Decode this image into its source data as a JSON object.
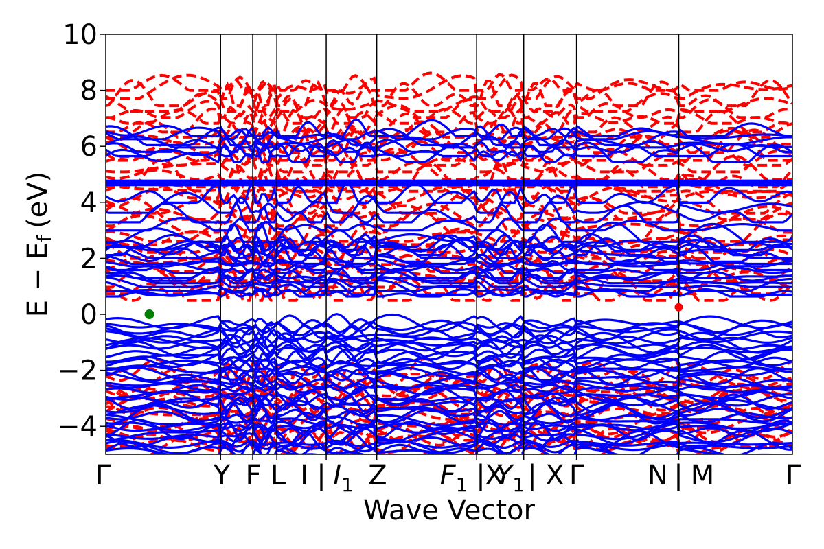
{
  "chart_data": {
    "type": "line",
    "title": "",
    "xlabel": "Wave Vector",
    "ylabel": "E − E",
    "ylabel_subscript": "f",
    "ylabel_unit": "(eV)",
    "ylim": [
      -5,
      10
    ],
    "grid": false,
    "y_ticks": [
      {
        "value": -4,
        "label": "−4"
      },
      {
        "value": -2,
        "label": "−2"
      },
      {
        "value": 0,
        "label": "0"
      },
      {
        "value": 2,
        "label": "2"
      },
      {
        "value": 4,
        "label": "4"
      },
      {
        "value": 6,
        "label": "6"
      },
      {
        "value": 8,
        "label": "8"
      },
      {
        "value": 10,
        "label": "10"
      }
    ],
    "kpath_segments": [
      1.0,
      0.28,
      0.21,
      0.43,
      0.44,
      0.87,
      0.41,
      0.46,
      0.89,
      0.99
    ],
    "high_symmetry_labels": [
      {
        "label": "Γ"
      },
      {
        "label": "Y"
      },
      {
        "label": "F"
      },
      {
        "label": "L"
      },
      {
        "label": "I"
      },
      {
        "label": "|"
      },
      {
        "label": "I",
        "sub": "1"
      },
      {
        "label": "Z"
      },
      {
        "label": "F",
        "sub": "1"
      },
      {
        "label": "|"
      },
      {
        "label": "X"
      },
      {
        "label": "Y",
        "sub": "1"
      },
      {
        "label": "|"
      },
      {
        "label": "X"
      },
      {
        "label": "Γ"
      },
      {
        "label": "N"
      },
      {
        "label": "|"
      },
      {
        "label": "M"
      },
      {
        "label": "Γ"
      }
    ],
    "series": [
      {
        "style": "dashed",
        "color": "#ff0000",
        "description_values": "conduction bands 0.5–8.4 eV, valence bands below -1.8 eV"
      },
      {
        "style": "solid",
        "color": "#0000ff",
        "description_values": "valence bands -5 to -0.2 eV, conduction bands 0.5–7.0 eV, flat band at 4.7 eV"
      }
    ],
    "band_edges": {
      "vbm": {
        "segment_fraction": 0.38,
        "energy": 0.0,
        "color": "#008000"
      },
      "cbm": {
        "energy": 0.25,
        "color": "#ff0000"
      }
    }
  }
}
